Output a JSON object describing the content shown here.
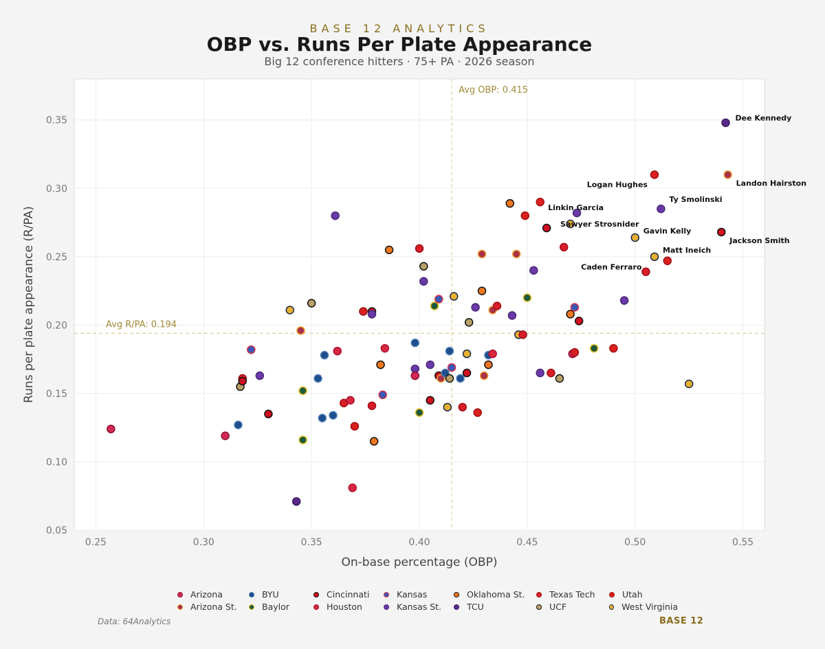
{
  "header": {
    "brand": "BASE 12 ANALYTICS",
    "title": "OBP vs. Runs Per Plate Appearance",
    "subtitle": "Big 12 conference hitters  ·  75+ PA  ·  2026 season"
  },
  "footer": {
    "source": "Data: 64Analytics",
    "brand": "BASE 12"
  },
  "chart_data": {
    "type": "scatter",
    "xlabel": "On-base percentage (OBP)",
    "ylabel": "Runs per plate appearance (R/PA)",
    "xlim": [
      0.24,
      0.56
    ],
    "ylim": [
      0.05,
      0.38
    ],
    "xticks": [
      "0.25",
      "0.30",
      "0.35",
      "0.40",
      "0.45",
      "0.50",
      "0.55"
    ],
    "yticks": [
      "0.05",
      "0.10",
      "0.15",
      "0.20",
      "0.25",
      "0.30",
      "0.35"
    ],
    "grid": true,
    "legend_position": "bottom",
    "reference_lines": {
      "avg_obp": {
        "value": 0.415,
        "label": "Avg OBP: 0.415"
      },
      "avg_rpa": {
        "value": 0.194,
        "label": "Avg R/PA: 0.194"
      }
    },
    "teams": [
      {
        "name": "Arizona",
        "fill": "#d42a55",
        "edge": "#8a1030"
      },
      {
        "name": "Arizona St.",
        "fill": "#a8324a",
        "edge": "#f0a030"
      },
      {
        "name": "BYU",
        "fill": "#1f4e8c",
        "edge": "#4d7fb8"
      },
      {
        "name": "Baylor",
        "fill": "#1f5a3c",
        "edge": "#e8c020"
      },
      {
        "name": "Cincinnati",
        "fill": "#d01020",
        "edge": "#111111"
      },
      {
        "name": "Houston",
        "fill": "#d62840",
        "edge": "#b01030"
      },
      {
        "name": "Kansas",
        "fill": "#3a58b8",
        "edge": "#d43040"
      },
      {
        "name": "Kansas St.",
        "fill": "#6a3aa8",
        "edge": "#4a2a78"
      },
      {
        "name": "Oklahoma St.",
        "fill": "#f07820",
        "edge": "#111111"
      },
      {
        "name": "TCU",
        "fill": "#5a2a8a",
        "edge": "#3a1a60"
      },
      {
        "name": "Texas Tech",
        "fill": "#d81e28",
        "edge": "#a01018"
      },
      {
        "name": "UCF",
        "fill": "#b8a068",
        "edge": "#111111"
      },
      {
        "name": "Utah",
        "fill": "#dc2020",
        "edge": "#a01010"
      },
      {
        "name": "West Virginia",
        "fill": "#e8b030",
        "edge": "#1a2a50"
      }
    ],
    "points": [
      {
        "x": 0.542,
        "y": 0.348,
        "team": "TCU",
        "label": "Dee Kennedy"
      },
      {
        "x": 0.509,
        "y": 0.31,
        "team": "Utah",
        "label": "Logan Hughes"
      },
      {
        "x": 0.543,
        "y": 0.31,
        "team": "Arizona St.",
        "label": "Landon Hairston"
      },
      {
        "x": 0.512,
        "y": 0.285,
        "team": "Kansas St.",
        "label": "Ty Smolinski"
      },
      {
        "x": 0.473,
        "y": 0.282,
        "team": "Kansas St.",
        "label": "Sawyer Strosnider"
      },
      {
        "x": 0.459,
        "y": 0.271,
        "team": "Cincinnati",
        "label": "Linkin Garcia"
      },
      {
        "x": 0.5,
        "y": 0.264,
        "team": "West Virginia",
        "label": "Gavin Kelly"
      },
      {
        "x": 0.54,
        "y": 0.268,
        "team": "Cincinnati",
        "label": "Jackson Smith"
      },
      {
        "x": 0.509,
        "y": 0.25,
        "team": "West Virginia",
        "label": "Matt Ineich"
      },
      {
        "x": 0.505,
        "y": 0.239,
        "team": "Texas Tech",
        "label": "Caden Ferraro"
      },
      {
        "x": 0.515,
        "y": 0.247,
        "team": "Utah"
      },
      {
        "x": 0.257,
        "y": 0.124,
        "team": "Arizona"
      },
      {
        "x": 0.31,
        "y": 0.119,
        "team": "Arizona"
      },
      {
        "x": 0.316,
        "y": 0.127,
        "team": "BYU"
      },
      {
        "x": 0.317,
        "y": 0.155,
        "team": "UCF"
      },
      {
        "x": 0.318,
        "y": 0.161,
        "team": "Texas Tech"
      },
      {
        "x": 0.318,
        "y": 0.159,
        "team": "Cincinnati"
      },
      {
        "x": 0.322,
        "y": 0.182,
        "team": "Kansas"
      },
      {
        "x": 0.326,
        "y": 0.163,
        "team": "Kansas St."
      },
      {
        "x": 0.33,
        "y": 0.135,
        "team": "Cincinnati"
      },
      {
        "x": 0.34,
        "y": 0.211,
        "team": "West Virginia"
      },
      {
        "x": 0.343,
        "y": 0.071,
        "team": "TCU"
      },
      {
        "x": 0.345,
        "y": 0.196,
        "team": "Arizona St."
      },
      {
        "x": 0.346,
        "y": 0.152,
        "team": "Baylor"
      },
      {
        "x": 0.346,
        "y": 0.116,
        "team": "Baylor"
      },
      {
        "x": 0.35,
        "y": 0.216,
        "team": "UCF"
      },
      {
        "x": 0.353,
        "y": 0.161,
        "team": "BYU"
      },
      {
        "x": 0.355,
        "y": 0.132,
        "team": "BYU"
      },
      {
        "x": 0.356,
        "y": 0.178,
        "team": "BYU"
      },
      {
        "x": 0.36,
        "y": 0.134,
        "team": "BYU"
      },
      {
        "x": 0.361,
        "y": 0.28,
        "team": "Kansas St."
      },
      {
        "x": 0.362,
        "y": 0.181,
        "team": "Houston"
      },
      {
        "x": 0.365,
        "y": 0.143,
        "team": "Texas Tech"
      },
      {
        "x": 0.368,
        "y": 0.145,
        "team": "Houston"
      },
      {
        "x": 0.369,
        "y": 0.081,
        "team": "Houston"
      },
      {
        "x": 0.37,
        "y": 0.126,
        "team": "Utah"
      },
      {
        "x": 0.374,
        "y": 0.21,
        "team": "Utah"
      },
      {
        "x": 0.378,
        "y": 0.21,
        "team": "Cincinnati"
      },
      {
        "x": 0.378,
        "y": 0.208,
        "team": "Kansas St."
      },
      {
        "x": 0.378,
        "y": 0.141,
        "team": "Texas Tech"
      },
      {
        "x": 0.379,
        "y": 0.115,
        "team": "Oklahoma St."
      },
      {
        "x": 0.382,
        "y": 0.171,
        "team": "Oklahoma St."
      },
      {
        "x": 0.383,
        "y": 0.149,
        "team": "Kansas"
      },
      {
        "x": 0.384,
        "y": 0.183,
        "team": "Houston"
      },
      {
        "x": 0.386,
        "y": 0.255,
        "team": "Oklahoma St."
      },
      {
        "x": 0.398,
        "y": 0.187,
        "team": "BYU"
      },
      {
        "x": 0.398,
        "y": 0.168,
        "team": "Kansas St."
      },
      {
        "x": 0.398,
        "y": 0.163,
        "team": "Arizona"
      },
      {
        "x": 0.4,
        "y": 0.256,
        "team": "Texas Tech"
      },
      {
        "x": 0.4,
        "y": 0.136,
        "team": "Baylor"
      },
      {
        "x": 0.402,
        "y": 0.243,
        "team": "UCF"
      },
      {
        "x": 0.402,
        "y": 0.232,
        "team": "Kansas St."
      },
      {
        "x": 0.405,
        "y": 0.171,
        "team": "Kansas St."
      },
      {
        "x": 0.405,
        "y": 0.145,
        "team": "Cincinnati"
      },
      {
        "x": 0.407,
        "y": 0.214,
        "team": "Baylor"
      },
      {
        "x": 0.409,
        "y": 0.219,
        "team": "Kansas"
      },
      {
        "x": 0.409,
        "y": 0.163,
        "team": "Cincinnati"
      },
      {
        "x": 0.41,
        "y": 0.161,
        "team": "Arizona St."
      },
      {
        "x": 0.412,
        "y": 0.165,
        "team": "BYU"
      },
      {
        "x": 0.413,
        "y": 0.14,
        "team": "West Virginia"
      },
      {
        "x": 0.414,
        "y": 0.181,
        "team": "BYU"
      },
      {
        "x": 0.414,
        "y": 0.161,
        "team": "UCF"
      },
      {
        "x": 0.415,
        "y": 0.169,
        "team": "Kansas"
      },
      {
        "x": 0.416,
        "y": 0.221,
        "team": "West Virginia"
      },
      {
        "x": 0.419,
        "y": 0.161,
        "team": "BYU"
      },
      {
        "x": 0.42,
        "y": 0.14,
        "team": "Texas Tech"
      },
      {
        "x": 0.422,
        "y": 0.179,
        "team": "West Virginia"
      },
      {
        "x": 0.422,
        "y": 0.165,
        "team": "Cincinnati"
      },
      {
        "x": 0.423,
        "y": 0.202,
        "team": "UCF"
      },
      {
        "x": 0.426,
        "y": 0.213,
        "team": "Kansas St."
      },
      {
        "x": 0.427,
        "y": 0.136,
        "team": "Utah"
      },
      {
        "x": 0.429,
        "y": 0.252,
        "team": "Arizona St."
      },
      {
        "x": 0.429,
        "y": 0.225,
        "team": "Oklahoma St."
      },
      {
        "x": 0.43,
        "y": 0.163,
        "team": "Arizona St."
      },
      {
        "x": 0.432,
        "y": 0.178,
        "team": "BYU"
      },
      {
        "x": 0.432,
        "y": 0.171,
        "team": "Oklahoma St."
      },
      {
        "x": 0.434,
        "y": 0.211,
        "team": "Arizona St."
      },
      {
        "x": 0.434,
        "y": 0.179,
        "team": "Houston"
      },
      {
        "x": 0.436,
        "y": 0.214,
        "team": "Texas Tech"
      },
      {
        "x": 0.442,
        "y": 0.289,
        "team": "Oklahoma St."
      },
      {
        "x": 0.443,
        "y": 0.207,
        "team": "Kansas St."
      },
      {
        "x": 0.445,
        "y": 0.252,
        "team": "Arizona St."
      },
      {
        "x": 0.446,
        "y": 0.193,
        "team": "West Virginia"
      },
      {
        "x": 0.448,
        "y": 0.193,
        "team": "Texas Tech"
      },
      {
        "x": 0.449,
        "y": 0.28,
        "team": "Utah"
      },
      {
        "x": 0.45,
        "y": 0.22,
        "team": "Baylor"
      },
      {
        "x": 0.453,
        "y": 0.24,
        "team": "Kansas St."
      },
      {
        "x": 0.456,
        "y": 0.29,
        "team": "Utah"
      },
      {
        "x": 0.456,
        "y": 0.165,
        "team": "Kansas St."
      },
      {
        "x": 0.461,
        "y": 0.165,
        "team": "Texas Tech"
      },
      {
        "x": 0.465,
        "y": 0.161,
        "team": "UCF"
      },
      {
        "x": 0.467,
        "y": 0.257,
        "team": "Texas Tech"
      },
      {
        "x": 0.47,
        "y": 0.274,
        "team": "West Virginia"
      },
      {
        "x": 0.47,
        "y": 0.208,
        "team": "Oklahoma St."
      },
      {
        "x": 0.471,
        "y": 0.179,
        "team": "Arizona"
      },
      {
        "x": 0.472,
        "y": 0.213,
        "team": "Kansas"
      },
      {
        "x": 0.472,
        "y": 0.18,
        "team": "Texas Tech"
      },
      {
        "x": 0.474,
        "y": 0.203,
        "team": "Cincinnati"
      },
      {
        "x": 0.481,
        "y": 0.183,
        "team": "Baylor"
      },
      {
        "x": 0.49,
        "y": 0.183,
        "team": "Utah"
      },
      {
        "x": 0.495,
        "y": 0.218,
        "team": "Kansas St."
      },
      {
        "x": 0.525,
        "y": 0.157,
        "team": "West Virginia"
      }
    ]
  }
}
